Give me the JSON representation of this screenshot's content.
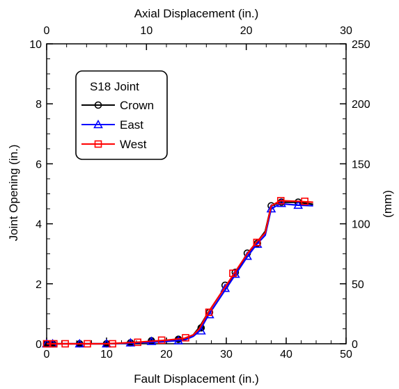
{
  "chart_data": {
    "type": "line",
    "title": "",
    "xlabel": "Fault Displacement (in.)",
    "ylabel": "Joint Opening (in.)",
    "x2label": "Axial Displacement (in.)",
    "y2label": "(mm)",
    "xlim": [
      0,
      50
    ],
    "ylim": [
      0,
      10
    ],
    "x2lim": [
      0,
      30
    ],
    "y2lim": [
      0,
      250
    ],
    "xticks": [
      "0",
      "10",
      "20",
      "30",
      "40",
      "50"
    ],
    "yticks": [
      "0",
      "2",
      "4",
      "6",
      "8",
      "10"
    ],
    "x2ticks": [
      "0",
      "10",
      "20",
      "30"
    ],
    "y2ticks": [
      "0",
      "50",
      "100",
      "150",
      "200",
      "250"
    ],
    "grid": false,
    "legend_title": "S18 Joint",
    "legend_position": "top-left",
    "series": [
      {
        "name": "Crown",
        "color": "#000000",
        "marker": "circle",
        "line": [
          [
            0,
            0
          ],
          [
            5,
            0
          ],
          [
            10,
            0
          ],
          [
            15,
            0.03
          ],
          [
            20,
            0.1
          ],
          [
            23,
            0.15
          ],
          [
            24.5,
            0.3
          ],
          [
            25.5,
            0.55
          ],
          [
            27,
            1.05
          ],
          [
            30,
            1.95
          ],
          [
            31,
            2.2
          ],
          [
            33.5,
            3.0
          ],
          [
            35,
            3.35
          ],
          [
            36.5,
            3.75
          ],
          [
            37.5,
            4.6
          ],
          [
            39,
            4.72
          ],
          [
            42,
            4.72
          ],
          [
            44.5,
            4.65
          ]
        ],
        "markers": [
          [
            0,
            0
          ],
          [
            1,
            0
          ],
          [
            5.5,
            0
          ],
          [
            10,
            0
          ],
          [
            14,
            0.03
          ],
          [
            17.5,
            0.1
          ],
          [
            22,
            0.15
          ],
          [
            25.8,
            0.53
          ],
          [
            27.2,
            1.05
          ],
          [
            29.8,
            1.95
          ],
          [
            31.5,
            2.38
          ],
          [
            33.5,
            3.02
          ],
          [
            35.2,
            3.35
          ],
          [
            37.5,
            4.6
          ],
          [
            39.2,
            4.72
          ],
          [
            42,
            4.72
          ]
        ]
      },
      {
        "name": "East",
        "color": "#0000ff",
        "marker": "triangle",
        "line": [
          [
            0,
            0
          ],
          [
            5,
            0
          ],
          [
            10,
            0
          ],
          [
            15,
            0.03
          ],
          [
            20,
            0.08
          ],
          [
            23,
            0.12
          ],
          [
            24.5,
            0.25
          ],
          [
            25.5,
            0.42
          ],
          [
            27,
            0.95
          ],
          [
            30,
            1.85
          ],
          [
            31,
            2.15
          ],
          [
            33.5,
            2.9
          ],
          [
            35,
            3.3
          ],
          [
            36.5,
            3.62
          ],
          [
            37.5,
            4.5
          ],
          [
            39,
            4.67
          ],
          [
            42,
            4.62
          ],
          [
            44.5,
            4.6
          ]
        ],
        "markers": [
          [
            0,
            0
          ],
          [
            1,
            0
          ],
          [
            5.5,
            0
          ],
          [
            10,
            0
          ],
          [
            14,
            0.03
          ],
          [
            17.5,
            0.08
          ],
          [
            22,
            0.1
          ],
          [
            25.8,
            0.43
          ],
          [
            27.2,
            0.97
          ],
          [
            29.8,
            1.85
          ],
          [
            31.5,
            2.32
          ],
          [
            33.5,
            2.92
          ],
          [
            35.2,
            3.32
          ],
          [
            37.5,
            4.5
          ],
          [
            39.2,
            4.68
          ],
          [
            42,
            4.62
          ]
        ]
      },
      {
        "name": "West",
        "color": "#ff0000",
        "marker": "square",
        "line": [
          [
            0,
            0
          ],
          [
            5,
            0
          ],
          [
            10,
            0
          ],
          [
            15,
            0.05
          ],
          [
            20,
            0.12
          ],
          [
            23,
            0.18
          ],
          [
            24.5,
            0.3
          ],
          [
            25.5,
            0.5
          ],
          [
            27,
            1.05
          ],
          [
            30,
            1.95
          ],
          [
            31,
            2.25
          ],
          [
            33.5,
            3.0
          ],
          [
            35,
            3.38
          ],
          [
            36.5,
            3.7
          ],
          [
            37.5,
            4.6
          ],
          [
            39,
            4.77
          ],
          [
            42,
            4.75
          ],
          [
            44.5,
            4.72
          ]
        ],
        "markers": [
          [
            0,
            0
          ],
          [
            1.2,
            0
          ],
          [
            3.1,
            0
          ],
          [
            6.8,
            0
          ],
          [
            11,
            0
          ],
          [
            15.2,
            0.05
          ],
          [
            19.2,
            0.12
          ],
          [
            23.2,
            0.2
          ],
          [
            27.1,
            1.05
          ],
          [
            31.1,
            2.35
          ],
          [
            35.1,
            3.38
          ],
          [
            39.1,
            4.77
          ],
          [
            43.1,
            4.75
          ]
        ]
      }
    ]
  }
}
